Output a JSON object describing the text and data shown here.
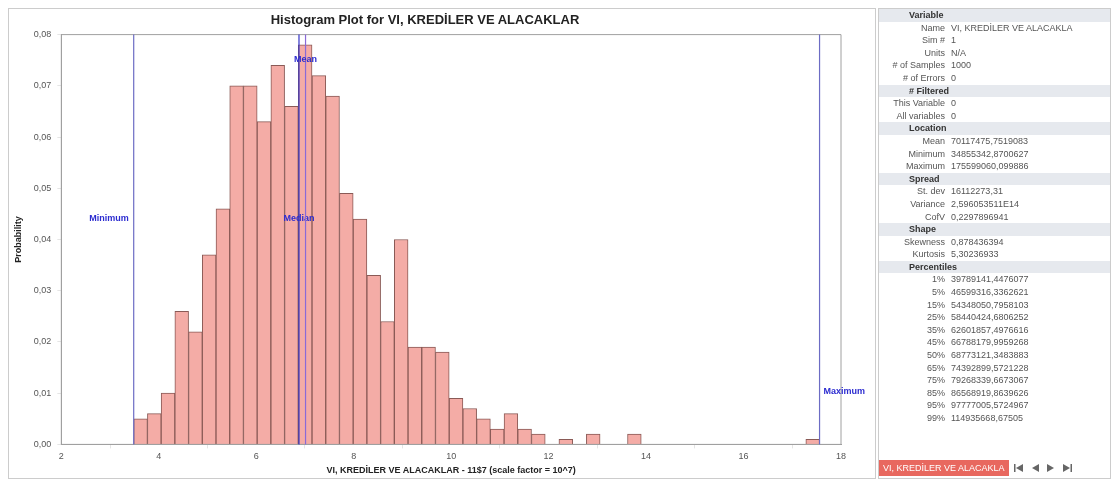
{
  "chart_data": [
    {
      "type": "histogram",
      "title": "Histogram Plot for VI, KREDİLER VE ALACAKLAR",
      "xlabel": "VI, KREDİLER VE ALACAKLAR - 11$7 (scale factor = 10^7)",
      "ylabel": "Probability",
      "bins": [
        3.4855,
        3.767,
        4.0485,
        4.33,
        4.6115,
        4.8929,
        5.1744,
        5.4559,
        5.7374,
        6.0189,
        6.3004,
        6.5819,
        6.8634,
        7.1448,
        7.4263,
        7.7078,
        7.9893,
        8.2708,
        8.5523,
        8.8338,
        9.1153,
        9.3967,
        9.6782,
        9.9597,
        10.2412,
        10.5227,
        10.8042,
        11.0857,
        11.3672,
        11.6487,
        11.9301,
        12.2116,
        12.4931,
        12.7746,
        13.0561,
        13.3376,
        13.6191,
        13.9006,
        14.182,
        14.4635,
        14.745,
        15.0265,
        15.308,
        15.5895,
        15.871,
        16.1525,
        16.4339,
        16.7154,
        16.9969,
        17.2784,
        17.5599
      ],
      "values": [
        0.005,
        0.006,
        0.01,
        0.026,
        0.022,
        0.037,
        0.046,
        0.07,
        0.07,
        0.063,
        0.074,
        0.066,
        0.078,
        0.072,
        0.068,
        0.049,
        0.044,
        0.033,
        0.024,
        0.04,
        0.019,
        0.019,
        0.018,
        0.009,
        0.007,
        0.005,
        0.003,
        0.006,
        0.003,
        0.002,
        0,
        0.001,
        0,
        0.002,
        0,
        0,
        0.002,
        0,
        0,
        0,
        0,
        0,
        0,
        0,
        0,
        0,
        0,
        0,
        0,
        0.001
      ],
      "color": "#f4aca6",
      "xlim": [
        2,
        18
      ],
      "xticks": [
        2,
        4,
        6,
        8,
        10,
        12,
        14,
        16,
        18
      ],
      "ylim": [
        0,
        0.08
      ],
      "yticks": [
        {
          "value": 0,
          "label": "0,00"
        },
        {
          "value": 0.01,
          "label": "0,01"
        },
        {
          "value": 0.02,
          "label": "0,02"
        },
        {
          "value": 0.03,
          "label": "0,03"
        },
        {
          "value": 0.04,
          "label": "0,04"
        },
        {
          "value": 0.05,
          "label": "0,05"
        },
        {
          "value": 0.06,
          "label": "0,06"
        },
        {
          "value": 0.07,
          "label": "0,07"
        },
        {
          "value": 0.08,
          "label": "0,08"
        }
      ],
      "ref_lines": [
        {
          "axis": "x",
          "value": 3.4855,
          "label": "Minimum",
          "color": "#6c6cc4"
        },
        {
          "axis": "x",
          "value": 6.8773,
          "label": "Median",
          "color": "#3434c8"
        },
        {
          "axis": "x",
          "value": 7.0117,
          "label": "Mean",
          "color": "#8a6ad8"
        },
        {
          "axis": "x",
          "value": 17.5599,
          "label": "Maximum",
          "color": "#6c6cc4"
        }
      ]
    },
    {
      "type": "other",
      "y_categories": [
        "Variable",
        "Name",
        "Sim #",
        "Units",
        "# of Samples",
        "# of Errors",
        "# Filtered",
        "This Variable",
        "All variables",
        "Location",
        "Mean",
        "Minimum",
        "Maximum",
        "Spread",
        "St. dev",
        "Variance",
        "CofV",
        "Shape",
        "Skewness",
        "Kurtosis",
        "Percentiles",
        "1%",
        "5%",
        "15%",
        "25%",
        "35%",
        "45%",
        "50%",
        "65%",
        "75%",
        "85%",
        "95%",
        "99%"
      ],
      "cell_labels": [
        [
          null
        ],
        [
          "VI, KREDİLER VE ALACAKLA"
        ],
        [
          "1"
        ],
        [
          "N/A"
        ],
        [
          "1000"
        ],
        [
          "0"
        ],
        [
          null
        ],
        [
          "0"
        ],
        [
          "0"
        ],
        [
          null
        ],
        [
          "70117475,7519083"
        ],
        [
          "34855342,8700627"
        ],
        [
          "175599060,099886"
        ],
        [
          null
        ],
        [
          "16112273,31"
        ],
        [
          "2,596053511E14"
        ],
        [
          "0,2297896941"
        ],
        [
          null
        ],
        [
          "0,878436394"
        ],
        [
          "5,30236933"
        ],
        [
          null
        ],
        [
          "39789141,4476077"
        ],
        [
          "46599316,3362621"
        ],
        [
          "54348050,7958103"
        ],
        [
          "58440424,6806252"
        ],
        [
          "62601857,4976616"
        ],
        [
          "66788179,9959268"
        ],
        [
          "68773121,3483883"
        ],
        [
          "74392899,5721228"
        ],
        [
          "79268339,6673067"
        ],
        [
          "86568919,8639626"
        ],
        [
          "97777005,5724967"
        ],
        [
          "114935668,67505"
        ]
      ],
      "annotations": [
        "VI, KREDİLER VE ALACAKLA"
      ]
    }
  ]
}
